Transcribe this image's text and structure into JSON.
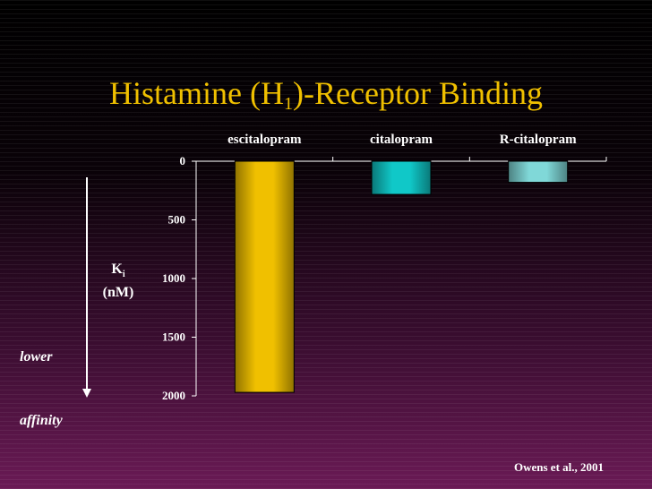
{
  "slide": {
    "title_main": "Histamine (H",
    "title_sub": "1",
    "title_tail": ")-Receptor Binding",
    "ki_letter": "K",
    "ki_sub": "i",
    "ki_unit": "(nM)",
    "lower_label": "lower",
    "affinity_label": "affinity",
    "citation": "Owens et al., 2001"
  },
  "chart_data": {
    "type": "bar",
    "categories": [
      "escitalopram",
      "citalopram",
      "R-citalopram"
    ],
    "values": [
      1970,
      283,
      180
    ],
    "ylim": [
      0,
      2000
    ],
    "y_inverted": true,
    "y_ticks": [
      0,
      500,
      1000,
      1500,
      2000
    ],
    "colors": [
      "#f0c000",
      "#10c8c8",
      "#80d8d8"
    ],
    "grid": false
  }
}
